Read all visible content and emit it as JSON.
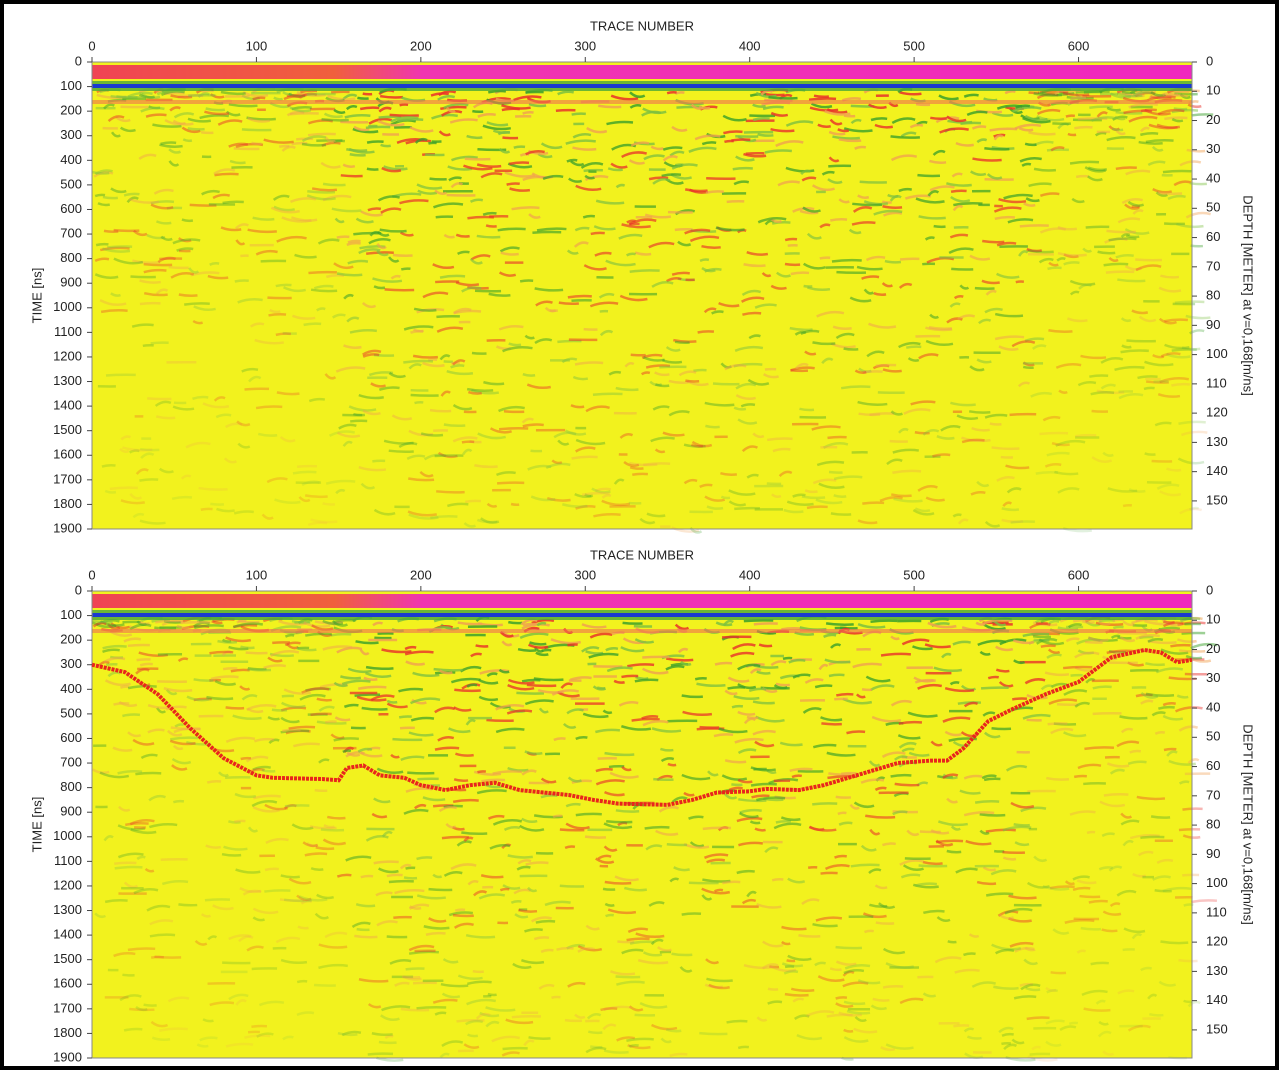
{
  "chart_data": [
    {
      "type": "radargram",
      "title": "TRACE NUMBER",
      "ylabel": "TIME [ns]",
      "y2label": "DEPTH [METER] at v=0,168[m/ns]",
      "xlim": [
        0,
        669
      ],
      "xticks": [
        0,
        100,
        200,
        300,
        400,
        500,
        600
      ],
      "ylim": [
        0,
        1900
      ],
      "yticks": [
        0,
        100,
        200,
        300,
        400,
        500,
        600,
        700,
        800,
        900,
        1000,
        1100,
        1200,
        1300,
        1400,
        1500,
        1600,
        1700,
        1800,
        1900
      ],
      "y2lim": [
        0,
        159.6
      ],
      "y2ticks": [
        0,
        10,
        20,
        30,
        40,
        50,
        60,
        70,
        80,
        90,
        100,
        110,
        120,
        130,
        140,
        150
      ],
      "series": []
    },
    {
      "type": "radargram",
      "title": "TRACE NUMBER",
      "ylabel": "TIME [ns]",
      "y2label": "DEPTH [METER] at v=0,168[m/ns]",
      "xlim": [
        0,
        669
      ],
      "xticks": [
        0,
        100,
        200,
        300,
        400,
        500,
        600
      ],
      "ylim": [
        0,
        1900
      ],
      "yticks": [
        0,
        100,
        200,
        300,
        400,
        500,
        600,
        700,
        800,
        900,
        1000,
        1100,
        1200,
        1300,
        1400,
        1500,
        1600,
        1700,
        1800,
        1900
      ],
      "y2lim": [
        0,
        159.6
      ],
      "y2ticks": [
        0,
        10,
        20,
        30,
        40,
        50,
        60,
        70,
        80,
        90,
        100,
        110,
        120,
        130,
        140,
        150
      ],
      "series": [
        {
          "color": "#e8261c",
          "x": [
            0,
            20,
            40,
            60,
            80,
            100,
            110,
            140,
            150,
            155,
            165,
            175,
            190,
            200,
            215,
            230,
            245,
            260,
            275,
            290,
            305,
            320,
            350,
            365,
            380,
            400,
            410,
            430,
            445,
            460,
            475,
            490,
            510,
            520,
            530,
            545,
            560,
            580,
            600,
            610,
            620,
            640,
            650,
            660,
            669
          ],
          "values": [
            300,
            330,
            420,
            560,
            680,
            750,
            760,
            765,
            770,
            720,
            710,
            750,
            760,
            790,
            810,
            790,
            780,
            810,
            820,
            830,
            850,
            865,
            870,
            850,
            820,
            815,
            805,
            810,
            790,
            760,
            730,
            700,
            690,
            690,
            640,
            530,
            480,
            420,
            370,
            320,
            270,
            240,
            250,
            290,
            280
          ]
        }
      ]
    }
  ]
}
